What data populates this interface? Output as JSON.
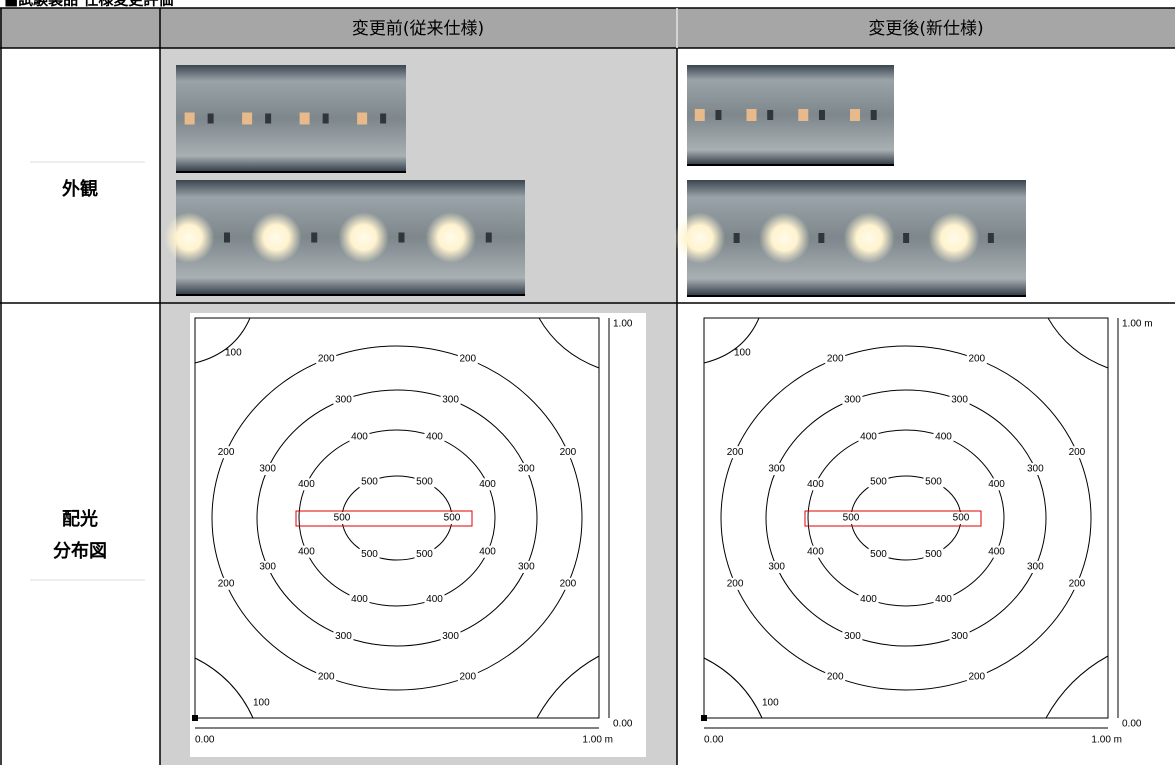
{
  "title": "■試験製品 仕様変更評価",
  "table": {
    "header": [
      "変更前(従来仕様)",
      "変更後(新仕様)"
    ],
    "rows": [
      {
        "label": [
          "外観"
        ]
      },
      {
        "label": [
          "配光",
          "分布図"
        ]
      }
    ]
  },
  "plots": [
    {
      "rings": [
        [
          "500",
          "500",
          "500",
          "500",
          "500",
          "500"
        ],
        [
          "400",
          "400",
          "400",
          "400",
          "400",
          "400",
          "400",
          "400"
        ],
        [
          "300",
          "300",
          "300",
          "300",
          "300",
          "300",
          "300",
          "300"
        ],
        [
          "200",
          "200",
          "200",
          "200",
          "200",
          "200",
          "200",
          "200"
        ]
      ],
      "corners": [
        "100",
        "100"
      ],
      "y_top": "1.00",
      "y_bottom": "0.00",
      "x_left": "0.00",
      "x_right": "1.00 m"
    },
    {
      "rings": [
        [
          "500",
          "500",
          "500",
          "500",
          "500",
          "500"
        ],
        [
          "400",
          "400",
          "400",
          "400",
          "400",
          "400",
          "400",
          "400"
        ],
        [
          "300",
          "300",
          "300",
          "300",
          "300",
          "300",
          "300",
          "300"
        ],
        [
          "200",
          "200",
          "200",
          "200",
          "200",
          "200",
          "200",
          "200"
        ]
      ],
      "corners": [
        "100",
        "100"
      ],
      "y_top": "1.00 m",
      "y_bottom": "0.00",
      "x_left": "0.00",
      "x_right": "1.00 m"
    }
  ]
}
